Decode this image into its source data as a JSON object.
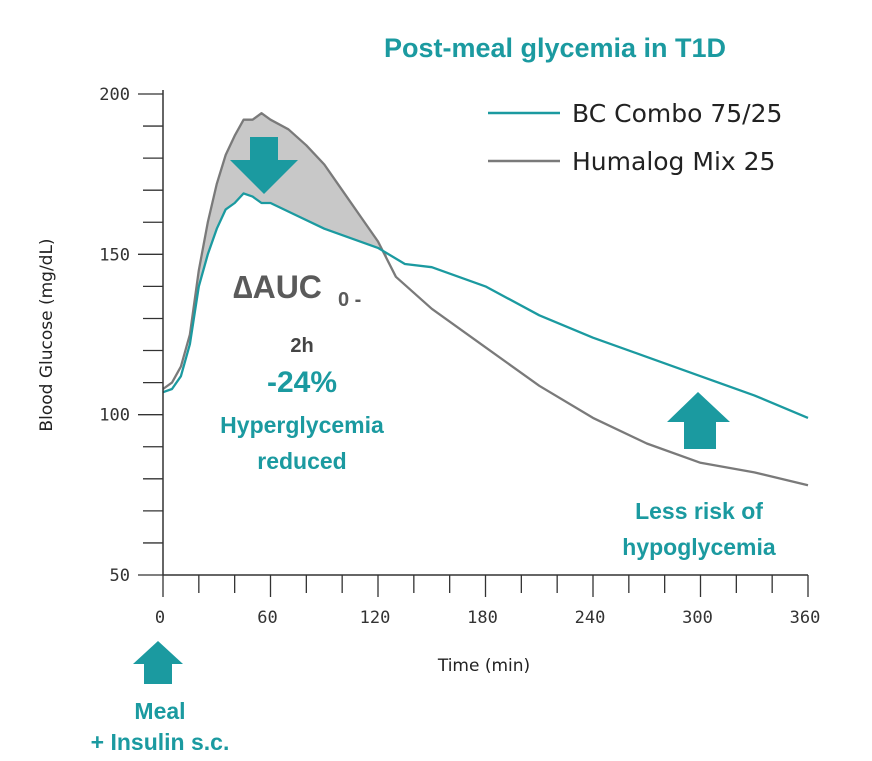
{
  "chart_data": {
    "type": "line",
    "title": "Post-meal glycemia in T1D",
    "xlabel": "Time (min)",
    "ylabel": "Blood Glucose (mg/dL)",
    "xlim": [
      0,
      360
    ],
    "ylim": [
      50,
      200
    ],
    "xticks": [
      0,
      60,
      120,
      180,
      240,
      300,
      360
    ],
    "xtick_labels": [
      "0",
      "60",
      "120",
      "180",
      "240",
      "300",
      "360"
    ],
    "yticks": [
      50,
      100,
      150,
      200
    ],
    "ytick_labels": [
      "50",
      "100",
      "150",
      "200"
    ],
    "grid": false,
    "legend": {
      "position": "top-right"
    },
    "series": [
      {
        "name": "BC Combo 75/25",
        "color": "#1b9aa0",
        "x": [
          0,
          5,
          10,
          15,
          20,
          25,
          30,
          35,
          40,
          45,
          50,
          55,
          60,
          75,
          90,
          105,
          120,
          135,
          150,
          180,
          210,
          240,
          270,
          300,
          330,
          360
        ],
        "y": [
          107,
          108,
          112,
          122,
          140,
          150,
          158,
          164,
          166,
          169,
          168,
          166,
          166,
          162,
          158,
          155,
          152,
          147,
          146,
          140,
          131,
          124,
          118,
          112,
          106,
          99
        ]
      },
      {
        "name": "Humalog Mix 25",
        "color": "#7a7a7a",
        "x": [
          0,
          5,
          10,
          15,
          20,
          25,
          30,
          35,
          40,
          45,
          50,
          55,
          60,
          70,
          80,
          90,
          100,
          110,
          120,
          130,
          150,
          180,
          210,
          240,
          270,
          300,
          330,
          360
        ],
        "y": [
          108,
          110,
          115,
          125,
          145,
          160,
          172,
          181,
          187,
          192,
          192,
          194,
          192,
          189,
          184,
          178,
          170,
          162,
          154,
          143,
          133,
          121,
          109,
          99,
          91,
          85,
          82,
          78
        ]
      }
    ],
    "shaded_difference": {
      "x_start": 18,
      "x_end": 125,
      "color": "#c8c8c8"
    },
    "annotations": {
      "delta_main": "∆AUC",
      "delta_sub": "0 -",
      "delta_sub2": "2h",
      "delta_value": "-24%",
      "hyper_line1": "Hyperglycemia",
      "hyper_line2": "reduced",
      "hypo_line1": "Less risk of",
      "hypo_line2": "hypoglycemia",
      "meal_line1": "Meal",
      "meal_line2": "+ Insulin s.c."
    },
    "arrows": [
      {
        "direction": "down",
        "meaning": "hyperglycemia-reduced",
        "color": "#1b9aa0"
      },
      {
        "direction": "up",
        "meaning": "less-hypoglycemia",
        "color": "#1b9aa0"
      },
      {
        "direction": "up",
        "meaning": "meal-insulin",
        "color": "#1b9aa0"
      }
    ]
  }
}
